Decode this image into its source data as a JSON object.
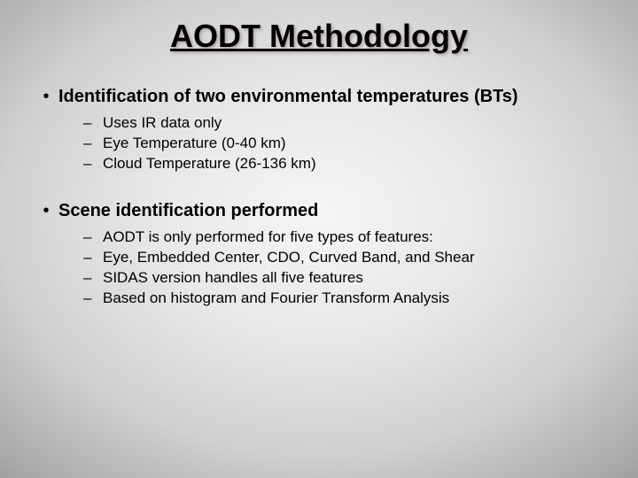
{
  "title": "AODT Methodology",
  "bullets": [
    {
      "heading": "Identification of two environmental temperatures (BTs)",
      "subs": [
        "Uses IR data only",
        "Eye Temperature (0-40 km)",
        "Cloud Temperature (26-136 km)"
      ]
    },
    {
      "heading": "Scene identification performed",
      "subs": [
        "AODT is only performed for five types of features:",
        "Eye, Embedded Center, CDO, Curved Band, and Shear",
        "SIDAS version handles all five features",
        "Based on histogram and Fourier Transform Analysis"
      ]
    }
  ],
  "glyphs": {
    "bullet": "•",
    "dash": "–"
  }
}
